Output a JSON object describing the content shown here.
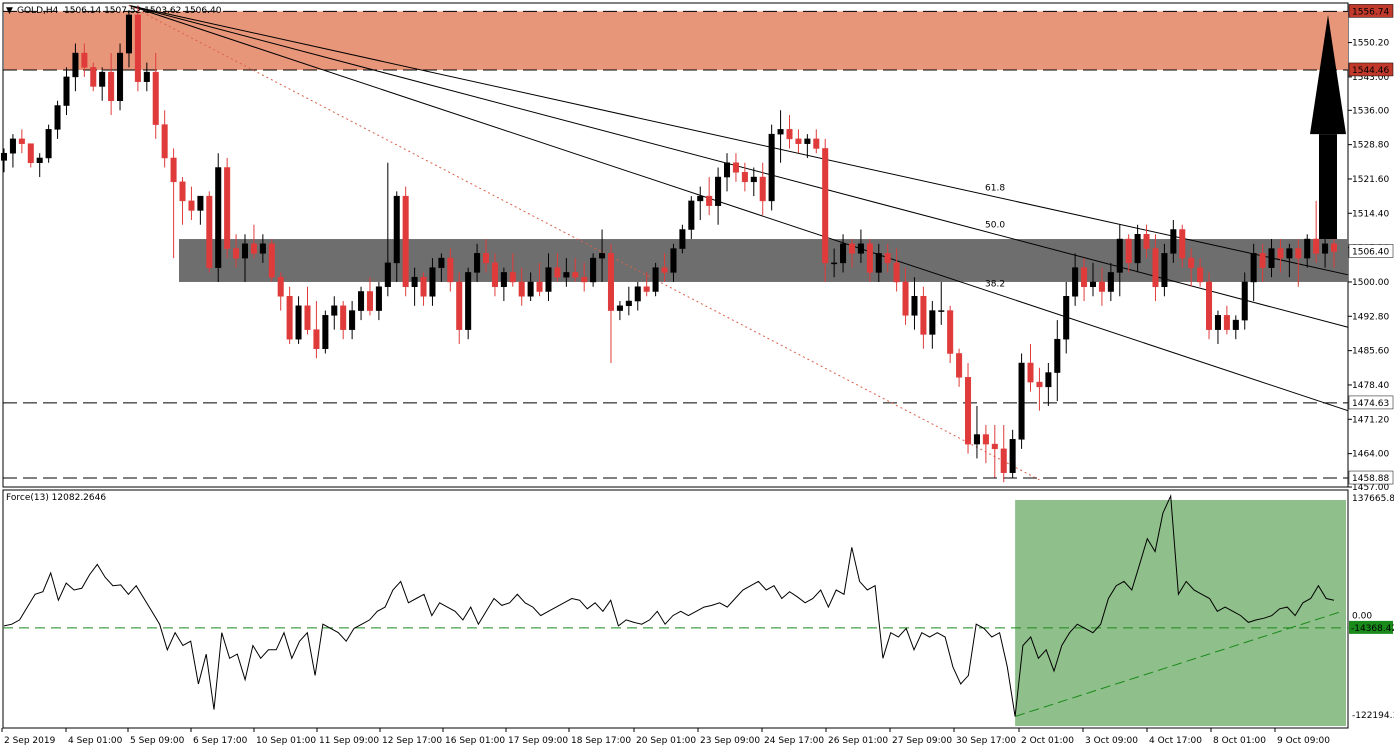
{
  "header": {
    "symbol_label": "GOLD,H4",
    "ohlc": "1506.14 1507.52 1503.62 1506.40",
    "arrow_icon": "triangle-down-icon"
  },
  "indicator": {
    "label": "Force(13) 12082.2646"
  },
  "colors": {
    "bull": "#000000",
    "bear": "#e03b3b",
    "resistance_zone": "#e8967a",
    "support_zone": "#6e6e6e",
    "green_zone": "#8fbf8a",
    "green_line": "#1a8a1a",
    "fib_dotted": "#d9614b"
  },
  "chart_data": [
    {
      "type": "candlestick",
      "title": "",
      "y_axis": {
        "min": 1457.0,
        "max": 1558.5,
        "ticks": [
          "1550.20",
          "1543.00",
          "1536.00",
          "1528.80",
          "1521.60",
          "1514.40",
          "1507.20",
          "1500.00",
          "1492.80",
          "1485.60",
          "1478.40",
          "1471.20",
          "1464.00",
          "1457.00"
        ]
      },
      "x_tick_labels": [
        "2 Sep 2019",
        "4 Sep 01:00",
        "5 Sep 09:00",
        "6 Sep 17:00",
        "10 Sep 01:00",
        "11 Sep 09:00",
        "12 Sep 17:00",
        "16 Sep 01:00",
        "17 Sep 09:00",
        "18 Sep 17:00",
        "20 Sep 01:00",
        "23 Sep 09:00",
        "24 Sep 17:00",
        "26 Sep 01:00",
        "27 Sep 09:00",
        "30 Sep 17:00",
        "2 Oct 01:00",
        "3 Oct 09:00",
        "4 Oct 17:00",
        "8 Oct 01:00",
        "9 Oct 09:00"
      ],
      "horizontal_levels": [
        {
          "label": "1556.74",
          "value": 1556.74,
          "style": "dashed"
        },
        {
          "label": "1544.46",
          "value": 1544.46,
          "style": "dashed"
        },
        {
          "label": "1474.63",
          "value": 1474.63,
          "style": "dashed"
        },
        {
          "label": "1458.88",
          "value": 1458.88,
          "style": "dashed"
        }
      ],
      "current_price": {
        "label": "1506.40",
        "value": 1506.4
      },
      "resistance_zone": [
        1544.46,
        1556.74
      ],
      "support_zone": [
        1500.0,
        1509.0
      ],
      "fib_fan_labels": [
        "61.8",
        "50.0",
        "38.2"
      ],
      "candles": [
        [
          1525.5,
          1528,
          1523,
          1527
        ],
        [
          1527,
          1531,
          1524,
          1530
        ],
        [
          1530,
          1532,
          1527,
          1529
        ],
        [
          1529,
          1529,
          1524,
          1525
        ],
        [
          1525,
          1527,
          1522,
          1526
        ],
        [
          1526,
          1533,
          1525,
          1532
        ],
        [
          1532,
          1538,
          1530,
          1537
        ],
        [
          1537,
          1545,
          1535,
          1543
        ],
        [
          1543,
          1550,
          1540,
          1548
        ],
        [
          1548,
          1550,
          1543,
          1545
        ],
        [
          1545,
          1546,
          1540,
          1541
        ],
        [
          1541,
          1545,
          1538,
          1544
        ],
        [
          1544,
          1548,
          1535,
          1538
        ],
        [
          1538,
          1550,
          1536,
          1548
        ],
        [
          1548,
          1557,
          1545,
          1556
        ],
        [
          1556,
          1558,
          1540,
          1542
        ],
        [
          1542,
          1546,
          1540,
          1544
        ],
        [
          1544,
          1548,
          1530,
          1533
        ],
        [
          1533,
          1536,
          1524,
          1526
        ],
        [
          1526,
          1528,
          1505,
          1521
        ],
        [
          1521,
          1522,
          1512,
          1517
        ],
        [
          1517,
          1520,
          1513,
          1515
        ],
        [
          1515,
          1518,
          1512,
          1518
        ],
        [
          1518,
          1519,
          1502,
          1503
        ],
        [
          1503,
          1527,
          1500,
          1524
        ],
        [
          1524,
          1526,
          1505,
          1507
        ],
        [
          1507,
          1510,
          1503,
          1505
        ],
        [
          1505,
          1510,
          1500,
          1508
        ],
        [
          1508,
          1512,
          1505,
          1506
        ],
        [
          1506,
          1510,
          1504,
          1508
        ],
        [
          1508,
          1509,
          1500,
          1501
        ],
        [
          1501,
          1502,
          1494,
          1497
        ],
        [
          1497,
          1499,
          1487,
          1488
        ],
        [
          1488,
          1497,
          1487,
          1495
        ],
        [
          1495,
          1499,
          1489,
          1490
        ],
        [
          1490,
          1496,
          1484,
          1486
        ],
        [
          1486,
          1494,
          1485,
          1493
        ],
        [
          1493,
          1497,
          1490,
          1495
        ],
        [
          1495,
          1496,
          1488,
          1490
        ],
        [
          1490,
          1496,
          1488,
          1494
        ],
        [
          1494,
          1499,
          1492,
          1498
        ],
        [
          1498,
          1501,
          1493,
          1494
        ],
        [
          1494,
          1500,
          1492,
          1499
        ],
        [
          1499,
          1525,
          1497,
          1504
        ],
        [
          1504,
          1519,
          1500,
          1518
        ],
        [
          1518,
          1520,
          1497,
          1499
        ],
        [
          1499,
          1503,
          1495,
          1501
        ],
        [
          1501,
          1502,
          1495,
          1497
        ],
        [
          1497,
          1505,
          1495,
          1503
        ],
        [
          1503,
          1506,
          1500,
          1505
        ],
        [
          1505,
          1507,
          1498,
          1500
        ],
        [
          1500,
          1502,
          1487,
          1490
        ],
        [
          1490,
          1503,
          1488,
          1502
        ],
        [
          1502,
          1508,
          1500,
          1506
        ],
        [
          1506,
          1509,
          1502,
          1504
        ],
        [
          1504,
          1506,
          1497,
          1499
        ],
        [
          1499,
          1503,
          1496,
          1502
        ],
        [
          1502,
          1506,
          1499,
          1500
        ],
        [
          1500,
          1503,
          1495,
          1497
        ],
        [
          1497,
          1502,
          1496,
          1500
        ],
        [
          1500,
          1504,
          1497,
          1498
        ],
        [
          1498,
          1506,
          1496,
          1503
        ],
        [
          1503,
          1506,
          1500,
          1501
        ],
        [
          1501,
          1505,
          1499,
          1502
        ],
        [
          1502,
          1505,
          1500,
          1501
        ],
        [
          1501,
          1504,
          1498,
          1500
        ],
        [
          1500,
          1506,
          1499,
          1505
        ],
        [
          1505,
          1511,
          1500,
          1506
        ],
        [
          1506,
          1508,
          1483,
          1494
        ],
        [
          1494,
          1496,
          1492,
          1495
        ],
        [
          1495,
          1499,
          1493,
          1496
        ],
        [
          1496,
          1500,
          1494,
          1499
        ],
        [
          1499,
          1502,
          1497,
          1498
        ],
        [
          1498,
          1504,
          1497,
          1503
        ],
        [
          1503,
          1506,
          1500,
          1502
        ],
        [
          1502,
          1508,
          1500,
          1507
        ],
        [
          1507,
          1512,
          1506,
          1511
        ],
        [
          1511,
          1518,
          1509,
          1517
        ],
        [
          1517,
          1520,
          1513,
          1518
        ],
        [
          1518,
          1522,
          1514,
          1516
        ],
        [
          1516,
          1524,
          1512,
          1522
        ],
        [
          1522,
          1527,
          1519,
          1525
        ],
        [
          1525,
          1527,
          1521,
          1523
        ],
        [
          1523,
          1525,
          1519,
          1521
        ],
        [
          1521,
          1524,
          1518,
          1522
        ],
        [
          1522,
          1525,
          1514,
          1517
        ],
        [
          1517,
          1533,
          1515,
          1531
        ],
        [
          1531,
          1536,
          1525,
          1532
        ],
        [
          1532,
          1535,
          1528,
          1530
        ],
        [
          1530,
          1532,
          1527,
          1529
        ],
        [
          1529,
          1531,
          1526,
          1530
        ],
        [
          1530,
          1532,
          1527,
          1528
        ],
        [
          1528,
          1530,
          1500,
          1504
        ],
        [
          1504,
          1507,
          1501,
          1504
        ],
        [
          1504,
          1510,
          1502,
          1508
        ],
        [
          1508,
          1509,
          1503,
          1506
        ],
        [
          1506,
          1511,
          1504,
          1508
        ],
        [
          1508,
          1509,
          1500,
          1502
        ],
        [
          1502,
          1508,
          1500,
          1506
        ],
        [
          1506,
          1508,
          1502,
          1504
        ],
        [
          1504,
          1507,
          1498,
          1500
        ],
        [
          1500,
          1503,
          1491,
          1493
        ],
        [
          1493,
          1501,
          1490,
          1497
        ],
        [
          1497,
          1499,
          1486,
          1489
        ],
        [
          1489,
          1496,
          1486,
          1494
        ],
        [
          1494,
          1500,
          1491,
          1494
        ],
        [
          1494,
          1495,
          1483,
          1485
        ],
        [
          1485,
          1486,
          1478,
          1480
        ],
        [
          1480,
          1483,
          1464,
          1466
        ],
        [
          1466,
          1474,
          1463,
          1468
        ],
        [
          1468,
          1470,
          1462,
          1466
        ],
        [
          1466,
          1470,
          1459,
          1465
        ],
        [
          1465,
          1470,
          1458,
          1460
        ],
        [
          1460,
          1469,
          1459,
          1467
        ],
        [
          1467,
          1485,
          1465,
          1483
        ],
        [
          1483,
          1487,
          1477,
          1479
        ],
        [
          1479,
          1482,
          1473,
          1478
        ],
        [
          1478,
          1483,
          1474,
          1481
        ],
        [
          1481,
          1492,
          1475,
          1488
        ],
        [
          1488,
          1500,
          1485,
          1497
        ],
        [
          1497,
          1506,
          1495,
          1503
        ],
        [
          1503,
          1505,
          1496,
          1499
        ],
        [
          1499,
          1504,
          1497,
          1500
        ],
        [
          1500,
          1503,
          1495,
          1498
        ],
        [
          1498,
          1504,
          1496,
          1502
        ],
        [
          1502,
          1512,
          1497,
          1509
        ],
        [
          1509,
          1510,
          1502,
          1504
        ],
        [
          1504,
          1512,
          1502,
          1510
        ],
        [
          1510,
          1512,
          1505,
          1507
        ],
        [
          1507,
          1510,
          1496,
          1499
        ],
        [
          1499,
          1508,
          1497,
          1506
        ],
        [
          1506,
          1513,
          1504,
          1511
        ],
        [
          1511,
          1512,
          1503,
          1505
        ],
        [
          1505,
          1507,
          1499,
          1503
        ],
        [
          1503,
          1505,
          1499,
          1500
        ],
        [
          1500,
          1502,
          1488,
          1490
        ],
        [
          1490,
          1494,
          1487,
          1493
        ],
        [
          1493,
          1495,
          1489,
          1490
        ],
        [
          1490,
          1493,
          1488,
          1492
        ],
        [
          1492,
          1502,
          1490,
          1500
        ],
        [
          1500,
          1508,
          1496,
          1506
        ],
        [
          1506,
          1508,
          1500,
          1503
        ],
        [
          1503,
          1509,
          1501,
          1507
        ],
        [
          1507,
          1509,
          1502,
          1505
        ],
        [
          1505,
          1508,
          1501,
          1507
        ],
        [
          1507,
          1509,
          1499,
          1505
        ],
        [
          1505,
          1510,
          1503,
          1509
        ],
        [
          1509,
          1517,
          1504,
          1506
        ],
        [
          1506,
          1509,
          1503,
          1508
        ],
        [
          1508,
          1509,
          1503,
          1506.4
        ]
      ]
    },
    {
      "type": "line",
      "title": "Force(13) 12082.2646",
      "y_axis": {
        "min": -122194.1,
        "max": 137665.86,
        "ticks": [
          "137665.86",
          "0.00",
          "-122194.1"
        ]
      },
      "level_label": "-14368.42",
      "level_value": -14368.42,
      "values": [
        -12000,
        -10000,
        -5000,
        10000,
        25000,
        28000,
        50000,
        18000,
        38000,
        30000,
        32000,
        48000,
        60000,
        45000,
        35000,
        36000,
        25000,
        35000,
        20000,
        5000,
        -10000,
        -40000,
        -20000,
        -35000,
        -30000,
        -80000,
        -45000,
        -110000,
        -20000,
        -50000,
        -45000,
        -75000,
        -35000,
        -50000,
        -40000,
        -40000,
        -20000,
        -50000,
        -30000,
        -20000,
        -70000,
        -10000,
        -15000,
        -20000,
        -30000,
        -15000,
        -10000,
        -5000,
        5000,
        10000,
        30000,
        40000,
        15000,
        20000,
        25000,
        0,
        15000,
        10000,
        5000,
        -5000,
        10000,
        -10000,
        5000,
        20000,
        12000,
        15000,
        25000,
        15000,
        10000,
        0,
        5000,
        10000,
        15000,
        20000,
        18000,
        8000,
        15000,
        5000,
        18000,
        -12000,
        -5000,
        -8000,
        -10000,
        -5000,
        5000,
        -10000,
        0,
        5000,
        0,
        5000,
        10000,
        12000,
        15000,
        10000,
        20000,
        30000,
        35000,
        40000,
        30000,
        35000,
        20000,
        28000,
        22000,
        15000,
        20000,
        30000,
        10000,
        30000,
        25000,
        80000,
        40000,
        30000,
        35000,
        -50000,
        -20000,
        -25000,
        -15000,
        -40000,
        -20000,
        -25000,
        -20000,
        -25000,
        -60000,
        -80000,
        -70000,
        -10000,
        -15000,
        -25000,
        -20000,
        -60000,
        -118000,
        -35000,
        -25000,
        -50000,
        -40000,
        -65000,
        -35000,
        -20000,
        -10000,
        -15000,
        -20000,
        -10000,
        20000,
        35000,
        40000,
        30000,
        60000,
        90000,
        75000,
        120000,
        140000,
        25000,
        40000,
        30000,
        25000,
        20000,
        5000,
        10000,
        5000,
        0,
        -8000,
        -5000,
        -3000,
        0,
        8000,
        10000,
        0,
        15000,
        20000,
        35000,
        20000,
        18000
      ]
    }
  ]
}
